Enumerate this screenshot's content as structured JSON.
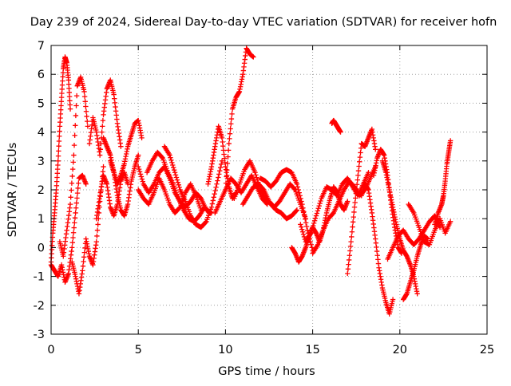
{
  "chart_data": {
    "type": "scatter",
    "title": "Day 239 of 2024, Sidereal Day-to-day VTEC variation (SDTVAR) for receiver hofn",
    "xlabel": "GPS time / hours",
    "ylabel": "SDTVAR / TECUs",
    "xlim": [
      0,
      25
    ],
    "ylim": [
      -3,
      7
    ],
    "xticks": [
      0,
      5,
      10,
      15,
      20,
      25
    ],
    "yticks": [
      -3,
      -2,
      -1,
      0,
      1,
      2,
      3,
      4,
      5,
      6,
      7
    ],
    "grid": true,
    "marker": "+",
    "color": "#ff0000",
    "series": [
      {
        "name": "trace-1",
        "x": [
          0.0,
          0.1,
          0.2,
          0.3,
          0.4,
          0.5,
          0.6,
          0.7,
          0.8,
          0.9,
          1.0,
          1.1
        ],
        "y": [
          -0.5,
          0.5,
          1.2,
          2.0,
          3.0,
          4.2,
          5.2,
          6.2,
          6.6,
          6.4,
          5.8,
          4.8
        ]
      },
      {
        "name": "trace-2",
        "x": [
          0.0,
          0.2,
          0.4,
          0.6,
          0.8,
          1.0,
          1.2,
          1.4,
          1.6,
          1.8,
          2.0
        ],
        "y": [
          -0.6,
          -0.8,
          -1.0,
          -0.6,
          -1.2,
          -0.9,
          0.0,
          1.2,
          2.4,
          2.5,
          2.2
        ]
      },
      {
        "name": "trace-3",
        "x": [
          0.5,
          0.7,
          0.9,
          1.1,
          1.3,
          1.5,
          1.7,
          1.9,
          2.1
        ],
        "y": [
          0.2,
          -0.3,
          0.6,
          1.5,
          3.2,
          5.6,
          5.9,
          5.4,
          4.2
        ]
      },
      {
        "name": "trace-4",
        "x": [
          1.2,
          1.4,
          1.6,
          1.8,
          2.0,
          2.2,
          2.4,
          2.6,
          2.8,
          3.0
        ],
        "y": [
          -0.5,
          -1.0,
          -1.6,
          -0.8,
          0.3,
          -0.3,
          -0.6,
          0.2,
          1.6,
          2.8
        ]
      },
      {
        "name": "trace-5",
        "x": [
          2.2,
          2.4,
          2.6,
          2.8,
          3.0,
          3.2,
          3.4,
          3.6,
          3.8,
          4.0
        ],
        "y": [
          3.6,
          4.5,
          4.0,
          3.2,
          4.6,
          5.5,
          5.8,
          5.3,
          4.3,
          3.5
        ]
      },
      {
        "name": "trace-6",
        "x": [
          3.0,
          3.2,
          3.4,
          3.6,
          3.8,
          4.0,
          4.2,
          4.4,
          4.6,
          4.8,
          5.0,
          5.2
        ],
        "y": [
          3.8,
          3.5,
          3.2,
          2.6,
          2.2,
          2.5,
          2.9,
          3.5,
          3.9,
          4.3,
          4.4,
          3.8
        ]
      },
      {
        "name": "trace-7",
        "x": [
          2.6,
          2.8,
          3.0,
          3.2,
          3.4,
          3.6,
          3.8,
          4.0,
          4.2,
          4.4
        ],
        "y": [
          1.0,
          1.8,
          2.5,
          2.2,
          1.4,
          1.1,
          1.5,
          2.3,
          2.6,
          2.2
        ]
      },
      {
        "name": "trace-8",
        "x": [
          3.4,
          3.6,
          3.8,
          4.0,
          4.2,
          4.4,
          4.6,
          4.8,
          5.0
        ],
        "y": [
          3.0,
          2.6,
          1.8,
          1.3,
          1.1,
          1.5,
          2.3,
          2.8,
          3.2
        ]
      },
      {
        "name": "trace-9",
        "x": [
          5.0,
          5.3,
          5.6,
          5.9,
          6.2,
          6.5,
          6.8,
          7.1,
          7.4,
          7.7,
          8.0,
          8.3,
          8.6,
          8.9,
          9.2
        ],
        "y": [
          2.8,
          2.2,
          1.9,
          2.2,
          2.6,
          2.8,
          2.4,
          1.9,
          1.6,
          1.4,
          1.6,
          1.9,
          1.7,
          1.3,
          1.2
        ]
      },
      {
        "name": "trace-10",
        "x": [
          5.0,
          5.3,
          5.6,
          5.9,
          6.2,
          6.5,
          6.8,
          7.1,
          7.4,
          7.7,
          8.0,
          8.3,
          8.6
        ],
        "y": [
          2.0,
          1.7,
          1.5,
          1.9,
          2.4,
          2.0,
          1.5,
          1.2,
          1.4,
          1.9,
          2.2,
          1.8,
          1.3
        ]
      },
      {
        "name": "trace-11",
        "x": [
          5.5,
          5.8,
          6.1,
          6.4,
          6.7,
          7.0,
          7.3,
          7.6,
          7.9,
          8.2,
          8.5,
          8.8,
          9.1
        ],
        "y": [
          2.6,
          3.0,
          3.3,
          3.1,
          2.6,
          2.2,
          1.7,
          1.3,
          1.0,
          0.9,
          1.1,
          1.4,
          1.2
        ]
      },
      {
        "name": "trace-12",
        "x": [
          6.5,
          6.8,
          7.1,
          7.4,
          7.7,
          8.0,
          8.3,
          8.6,
          8.9,
          9.2,
          9.5,
          9.8
        ],
        "y": [
          3.5,
          3.2,
          2.6,
          2.0,
          1.6,
          1.1,
          0.8,
          0.7,
          0.9,
          1.4,
          2.2,
          3.0
        ]
      },
      {
        "name": "trace-13",
        "x": [
          9.0,
          9.2,
          9.4,
          9.6,
          9.8,
          10.0,
          10.2,
          10.4,
          10.6
        ],
        "y": [
          2.2,
          2.8,
          3.5,
          4.2,
          3.8,
          2.8,
          2.1,
          1.7,
          1.9
        ]
      },
      {
        "name": "trace-14",
        "x": [
          9.4,
          9.7,
          10.0,
          10.3,
          10.6,
          10.9,
          11.2,
          11.5,
          11.8,
          12.1,
          12.4
        ],
        "y": [
          1.2,
          1.6,
          2.0,
          2.4,
          2.2,
          1.9,
          2.2,
          2.5,
          2.1,
          1.7,
          1.5
        ]
      },
      {
        "name": "trace-15",
        "x": [
          10.0,
          10.2,
          10.4,
          10.6,
          10.8,
          11.0,
          11.2,
          11.4,
          11.6
        ],
        "y": [
          2.0,
          3.6,
          4.8,
          5.2,
          5.4,
          6.0,
          6.9,
          6.7,
          6.6
        ]
      },
      {
        "name": "trace-16",
        "x": [
          10.5,
          10.8,
          11.1,
          11.4,
          11.7,
          12.0,
          12.3,
          12.6,
          12.9,
          13.2,
          13.5,
          13.8,
          14.1
        ],
        "y": [
          1.7,
          2.2,
          2.7,
          3.0,
          2.6,
          2.0,
          1.7,
          1.5,
          1.3,
          1.2,
          1.0,
          1.1,
          1.3
        ]
      },
      {
        "name": "trace-17",
        "x": [
          11.0,
          11.3,
          11.6,
          11.9,
          12.2,
          12.5,
          12.8,
          13.1,
          13.4,
          13.7,
          14.0,
          14.3,
          14.6
        ],
        "y": [
          1.5,
          1.8,
          2.1,
          2.2,
          2.0,
          1.6,
          1.4,
          1.6,
          1.9,
          2.2,
          2.0,
          1.5,
          1.0
        ]
      },
      {
        "name": "trace-18",
        "x": [
          12.0,
          12.3,
          12.6,
          12.9,
          13.2,
          13.5,
          13.8,
          14.1,
          14.4,
          14.7,
          15.0
        ],
        "y": [
          2.4,
          2.3,
          2.1,
          2.3,
          2.6,
          2.7,
          2.6,
          2.2,
          1.5,
          0.6,
          -0.1
        ]
      },
      {
        "name": "trace-19",
        "x": [
          13.8,
          14.0,
          14.2,
          14.4,
          14.6,
          14.8,
          15.0,
          15.2,
          15.4,
          15.6,
          15.8,
          16.0,
          16.2,
          16.4,
          16.6,
          16.8,
          17.0
        ],
        "y": [
          0.0,
          -0.2,
          -0.5,
          -0.3,
          0.0,
          0.4,
          0.7,
          0.5,
          0.2,
          0.6,
          1.2,
          1.7,
          2.1,
          1.9,
          1.5,
          1.3,
          1.6
        ]
      },
      {
        "name": "trace-20",
        "x": [
          14.3,
          14.6,
          14.9,
          15.2,
          15.5,
          15.8,
          16.1,
          16.4,
          16.7,
          17.0,
          17.3,
          17.6,
          17.9,
          18.2
        ],
        "y": [
          0.8,
          0.2,
          0.5,
          1.1,
          1.7,
          2.1,
          2.0,
          1.8,
          2.2,
          2.4,
          2.1,
          1.8,
          2.2,
          2.6
        ]
      },
      {
        "name": "trace-21",
        "x": [
          15.0,
          15.3,
          15.6,
          15.9,
          16.2,
          16.5,
          16.8,
          17.1,
          17.4,
          17.7,
          18.0,
          18.3,
          18.6
        ],
        "y": [
          -0.2,
          0.1,
          0.6,
          1.0,
          1.2,
          1.6,
          2.0,
          2.3,
          2.1,
          1.8,
          2.0,
          2.4,
          2.8
        ]
      },
      {
        "name": "trace-22",
        "x": [
          16.1,
          16.2,
          16.3,
          16.4,
          16.5,
          16.6
        ],
        "y": [
          4.3,
          4.4,
          4.3,
          4.2,
          4.1,
          4.0
        ]
      },
      {
        "name": "trace-23",
        "x": [
          17.0,
          17.2,
          17.4,
          17.6,
          17.8,
          18.0,
          18.2,
          18.4,
          18.6
        ],
        "y": [
          -0.9,
          0.2,
          1.4,
          2.5,
          3.6,
          3.5,
          3.8,
          4.1,
          3.4
        ]
      },
      {
        "name": "trace-24",
        "x": [
          17.8,
          18.0,
          18.2,
          18.4,
          18.6,
          18.8,
          19.0,
          19.2,
          19.4,
          19.6
        ],
        "y": [
          1.8,
          2.2,
          2.0,
          1.2,
          0.3,
          -0.7,
          -1.4,
          -1.9,
          -2.3,
          -1.8
        ]
      },
      {
        "name": "trace-25",
        "x": [
          18.5,
          18.7,
          18.9,
          19.1,
          19.3,
          19.5,
          19.7,
          19.9,
          20.1
        ],
        "y": [
          2.5,
          3.1,
          3.4,
          3.2,
          2.5,
          1.5,
          0.7,
          0.0,
          -0.2
        ]
      },
      {
        "name": "trace-26",
        "x": [
          19.0,
          19.2,
          19.4,
          19.6,
          19.8,
          20.0,
          20.2,
          20.4,
          20.6,
          20.8,
          21.0
        ],
        "y": [
          3.0,
          2.6,
          2.0,
          1.4,
          0.8,
          0.3,
          -0.1,
          -0.3,
          -0.6,
          -1.0,
          -1.6
        ]
      },
      {
        "name": "trace-27",
        "x": [
          19.3,
          19.6,
          19.9,
          20.2,
          20.5,
          20.8,
          21.1,
          21.4,
          21.7,
          22.0,
          22.3
        ],
        "y": [
          -0.4,
          0.0,
          0.4,
          0.6,
          0.3,
          0.1,
          0.3,
          0.6,
          0.9,
          1.1,
          0.7
        ]
      },
      {
        "name": "trace-28",
        "x": [
          20.2,
          20.4,
          20.6,
          20.8,
          21.0,
          21.2,
          21.4,
          21.6
        ],
        "y": [
          -1.8,
          -1.6,
          -1.2,
          -0.8,
          -0.3,
          0.1,
          0.4,
          0.3
        ]
      },
      {
        "name": "trace-29",
        "x": [
          20.5,
          20.8,
          21.1,
          21.4,
          21.7,
          22.0,
          22.3,
          22.6,
          22.9
        ],
        "y": [
          1.5,
          1.2,
          0.7,
          0.2,
          0.1,
          0.6,
          1.0,
          0.5,
          0.9
        ]
      },
      {
        "name": "trace-30",
        "x": [
          22.0,
          22.2,
          22.4,
          22.5,
          22.6,
          22.7,
          22.8,
          22.9
        ],
        "y": [
          0.8,
          1.2,
          1.5,
          1.8,
          2.3,
          2.9,
          3.3,
          3.7
        ]
      }
    ]
  }
}
